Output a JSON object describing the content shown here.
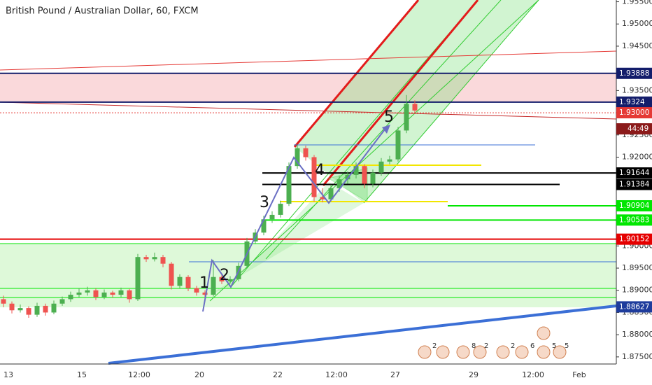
{
  "chart_data": {
    "type": "candlestick",
    "title": "British Pound / Australian Dollar, 60, FXCM",
    "up_color": "#4caf50",
    "down_color": "#ef5350",
    "ylim": [
      1.8734,
      1.9554
    ],
    "yticks": [
      {
        "value": 1.955,
        "label": "1.95500"
      },
      {
        "value": 1.95,
        "label": "1.95000"
      },
      {
        "value": 1.945,
        "label": "1.94500"
      },
      {
        "value": 1.935,
        "label": "1.93500"
      },
      {
        "value": 1.925,
        "label": "1.92500"
      },
      {
        "value": 1.92,
        "label": "1.92000"
      },
      {
        "value": 1.9,
        "label": "1.90000"
      },
      {
        "value": 1.895,
        "label": "1.89500"
      },
      {
        "value": 1.89,
        "label": "1.89000"
      },
      {
        "value": 1.885,
        "label": "1.88500"
      },
      {
        "value": 1.88,
        "label": "1.88000"
      },
      {
        "value": 1.875,
        "label": "1.87500"
      }
    ],
    "x_labels": [
      "13",
      "15",
      "12:00",
      "20",
      "22",
      "12:00",
      "27",
      "29",
      "12:00",
      "Feb"
    ],
    "candles": [
      [
        1.888,
        1.8888,
        1.8862,
        1.887
      ],
      [
        1.887,
        1.8875,
        1.8848,
        1.8855
      ],
      [
        1.8855,
        1.8868,
        1.885,
        1.886
      ],
      [
        1.886,
        1.8864,
        1.8838,
        1.8845
      ],
      [
        1.8845,
        1.8872,
        1.884,
        1.8865
      ],
      [
        1.8865,
        1.887,
        1.8843,
        1.885
      ],
      [
        1.885,
        1.8877,
        1.8846,
        1.887
      ],
      [
        1.887,
        1.8886,
        1.8865,
        1.888
      ],
      [
        1.888,
        1.8897,
        1.8874,
        1.889
      ],
      [
        1.889,
        1.8905,
        1.8884,
        1.8895
      ],
      [
        1.8895,
        1.8908,
        1.8888,
        1.89
      ],
      [
        1.89,
        1.8904,
        1.8878,
        1.8885
      ],
      [
        1.8885,
        1.8902,
        1.888,
        1.8895
      ],
      [
        1.8895,
        1.8899,
        1.8884,
        1.889
      ],
      [
        1.889,
        1.8906,
        1.8885,
        1.89
      ],
      [
        1.89,
        1.8903,
        1.8872,
        1.888
      ],
      [
        1.888,
        1.8982,
        1.8876,
        1.8975
      ],
      [
        1.8975,
        1.898,
        1.8964,
        1.897
      ],
      [
        1.897,
        1.8985,
        1.8965,
        1.8975
      ],
      [
        1.8975,
        1.898,
        1.8952,
        1.896
      ],
      [
        1.896,
        1.8964,
        1.8902,
        1.891
      ],
      [
        1.891,
        1.8936,
        1.8905,
        1.893
      ],
      [
        1.893,
        1.8934,
        1.8898,
        1.8905
      ],
      [
        1.8905,
        1.891,
        1.8888,
        1.8895
      ],
      [
        1.8895,
        1.89,
        1.8884,
        1.889
      ],
      [
        1.889,
        1.8968,
        1.8886,
        1.893
      ],
      [
        1.893,
        1.8936,
        1.8914,
        1.892
      ],
      [
        1.892,
        1.8932,
        1.8915,
        1.8925
      ],
      [
        1.8925,
        1.8962,
        1.892,
        1.8955
      ],
      [
        1.8955,
        1.9018,
        1.895,
        1.901
      ],
      [
        1.901,
        1.9038,
        1.9004,
        1.903
      ],
      [
        1.903,
        1.9068,
        1.9024,
        1.906
      ],
      [
        1.906,
        1.9078,
        1.9052,
        1.907
      ],
      [
        1.907,
        1.9102,
        1.9064,
        1.9095
      ],
      [
        1.9095,
        1.9188,
        1.909,
        1.918
      ],
      [
        1.918,
        1.9228,
        1.9174,
        1.922
      ],
      [
        1.922,
        1.9226,
        1.9192,
        1.92
      ],
      [
        1.92,
        1.9205,
        1.91,
        1.911
      ],
      [
        1.911,
        1.913,
        1.9098,
        1.9105
      ],
      [
        1.9105,
        1.9138,
        1.91,
        1.913
      ],
      [
        1.913,
        1.9158,
        1.9122,
        1.915
      ],
      [
        1.915,
        1.9168,
        1.914,
        1.916
      ],
      [
        1.916,
        1.9188,
        1.9152,
        1.918
      ],
      [
        1.918,
        1.9184,
        1.913,
        1.914
      ],
      [
        1.914,
        1.9172,
        1.9132,
        1.9165
      ],
      [
        1.9165,
        1.9198,
        1.9158,
        1.919
      ],
      [
        1.919,
        1.9203,
        1.9184,
        1.9195
      ],
      [
        1.9195,
        1.9268,
        1.919,
        1.926
      ],
      [
        1.926,
        1.934,
        1.9254,
        1.932
      ],
      [
        1.932,
        1.9328,
        1.9298,
        1.9305
      ]
    ],
    "price_labels": [
      {
        "value": 1.93888,
        "color": "#131d6b"
      },
      {
        "value": 1.9324,
        "color": "#131d6b"
      },
      {
        "value": 1.93,
        "label": "1.93000",
        "color": "#e53935"
      },
      {
        "value": 1.91644,
        "color": "#000000"
      },
      {
        "value": 1.91384,
        "color": "#000000"
      },
      {
        "value": 1.90904,
        "color": "#00e600"
      },
      {
        "value": 1.90583,
        "color": "#00e600"
      },
      {
        "value": 1.90152,
        "color": "#e50000"
      },
      {
        "value": 1.88627,
        "color": "#1e3c9c"
      }
    ],
    "countdown": "44:49",
    "wave_labels": [
      "1",
      "2",
      "3",
      "4",
      "5"
    ],
    "event_counts": [
      "2",
      "8",
      "2",
      "2",
      "6",
      "5",
      "5"
    ]
  }
}
